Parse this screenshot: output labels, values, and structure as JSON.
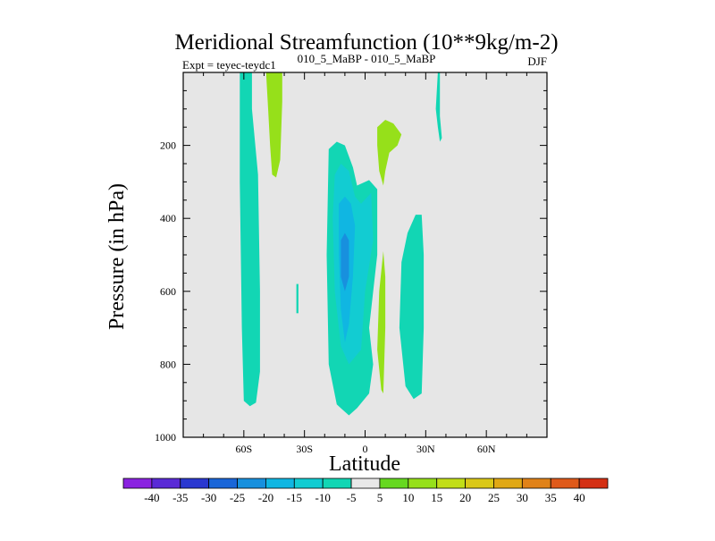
{
  "chart_data": {
    "type": "contour",
    "title": "Meridional Streamfunction (10**9kg/m-2)",
    "subtitle_left": "Expt = teyec-teydc1",
    "subtitle_center": "010_5_MaBP - 010_5_MaBP",
    "subtitle_right": "DJF",
    "xlabel": "Latitude",
    "ylabel": "Pressure (in hPa)",
    "xlim": [
      -90,
      90
    ],
    "ylim": [
      1000,
      0
    ],
    "x_ticks": [
      {
        "value": -60,
        "label": "60S"
      },
      {
        "value": -30,
        "label": "30S"
      },
      {
        "value": 0,
        "label": "0"
      },
      {
        "value": 30,
        "label": "30N"
      },
      {
        "value": 60,
        "label": "60N"
      }
    ],
    "y_ticks": [
      {
        "value": 200,
        "label": "200"
      },
      {
        "value": 400,
        "label": "400"
      },
      {
        "value": 600,
        "label": "600"
      },
      {
        "value": 800,
        "label": "800"
      },
      {
        "value": 1000,
        "label": "1000"
      }
    ],
    "x_minor_step": 10,
    "y_minor_step": 50,
    "background_color": "#e6e6e6",
    "colorbar": {
      "labels": [
        "-40",
        "-35",
        "-30",
        "-25",
        "-20",
        "-15",
        "-10",
        "-5",
        "5",
        "10",
        "15",
        "20",
        "25",
        "30",
        "35",
        "40"
      ],
      "colors": [
        "#8a22e0",
        "#5a2ad6",
        "#2a38d0",
        "#1a66d8",
        "#1890de",
        "#10b6e2",
        "#12ccd2",
        "#12d6b4",
        "#e8e8e8",
        "#66d820",
        "#96e01a",
        "#c2de18",
        "#dac818",
        "#e0a815",
        "#e08218",
        "#df5a1a",
        "#d43014"
      ]
    },
    "regions": [
      {
        "name": "sh-high-lat-neg-cell",
        "level": "-5",
        "points": [
          [
            -62,
            0
          ],
          [
            -56,
            0
          ],
          [
            -56,
            100
          ],
          [
            -53,
            280
          ],
          [
            -52,
            600
          ],
          [
            -52,
            820
          ],
          [
            -54,
            905
          ],
          [
            -57,
            915
          ],
          [
            -60,
            900
          ],
          [
            -61,
            700
          ],
          [
            -62,
            300
          ]
        ]
      },
      {
        "name": "sh-mid-lat-pos-cell",
        "level": "10",
        "points": [
          [
            -49,
            0
          ],
          [
            -41,
            0
          ],
          [
            -41,
            80
          ],
          [
            -42,
            240
          ],
          [
            -44,
            288
          ],
          [
            -46,
            280
          ],
          [
            -47,
            200
          ],
          [
            -48,
            100
          ]
        ]
      },
      {
        "name": "tropical-neg-cell-outer",
        "level": "-5",
        "points": [
          [
            -18,
            210
          ],
          [
            -14,
            190
          ],
          [
            -10,
            200
          ],
          [
            -6,
            260
          ],
          [
            -4,
            310
          ],
          [
            2,
            295
          ],
          [
            6,
            320
          ],
          [
            6,
            500
          ],
          [
            2,
            700
          ],
          [
            4,
            800
          ],
          [
            2,
            880
          ],
          [
            -4,
            920
          ],
          [
            -8,
            940
          ],
          [
            -14,
            910
          ],
          [
            -18,
            800
          ],
          [
            -19,
            500
          ]
        ]
      },
      {
        "name": "tropical-neg-cell-mid",
        "level": "-10",
        "points": [
          [
            -15,
            280
          ],
          [
            -12,
            250
          ],
          [
            -8,
            270
          ],
          [
            -5,
            340
          ],
          [
            -2,
            360
          ],
          [
            3,
            330
          ],
          [
            4,
            460
          ],
          [
            0,
            600
          ],
          [
            -2,
            760
          ],
          [
            -8,
            800
          ],
          [
            -12,
            750
          ],
          [
            -15,
            600
          ],
          [
            -16,
            400
          ]
        ]
      },
      {
        "name": "tropical-neg-cell-core",
        "level": "-15",
        "points": [
          [
            -13,
            360
          ],
          [
            -10,
            340
          ],
          [
            -7,
            360
          ],
          [
            -5,
            420
          ],
          [
            -6,
            560
          ],
          [
            -8,
            690
          ],
          [
            -10,
            740
          ],
          [
            -12,
            650
          ],
          [
            -13,
            500
          ]
        ]
      },
      {
        "name": "tropical-neg-cell-peak",
        "level": "-20",
        "points": [
          [
            -12,
            460
          ],
          [
            -10,
            440
          ],
          [
            -8,
            460
          ],
          [
            -8,
            560
          ],
          [
            -10,
            600
          ],
          [
            -12,
            560
          ]
        ]
      },
      {
        "name": "nh-subtropical-pos-upper",
        "level": "10",
        "points": [
          [
            6,
            150
          ],
          [
            10,
            130
          ],
          [
            14,
            140
          ],
          [
            18,
            170
          ],
          [
            16,
            200
          ],
          [
            12,
            220
          ],
          [
            10,
            270
          ],
          [
            9,
            310
          ],
          [
            7,
            270
          ],
          [
            6,
            200
          ]
        ]
      },
      {
        "name": "nh-subtropical-pos-lower",
        "level": "10",
        "points": [
          [
            9,
            490
          ],
          [
            10,
            560
          ],
          [
            10,
            700
          ],
          [
            9,
            880
          ],
          [
            8,
            870
          ],
          [
            6,
            760
          ],
          [
            7,
            600
          ]
        ]
      },
      {
        "name": "nh-mid-lat-neg-cell",
        "level": "-5",
        "points": [
          [
            25,
            390
          ],
          [
            28,
            390
          ],
          [
            29,
            500
          ],
          [
            29,
            700
          ],
          [
            28,
            880
          ],
          [
            24,
            895
          ],
          [
            20,
            860
          ],
          [
            17,
            700
          ],
          [
            18,
            520
          ],
          [
            21,
            440
          ]
        ]
      },
      {
        "name": "sh-small-neg-patch",
        "level": "-5",
        "points": [
          [
            -34,
            580
          ],
          [
            -33,
            580
          ],
          [
            -33,
            660
          ],
          [
            -34,
            660
          ]
        ]
      },
      {
        "name": "nh-thin-neg-strip",
        "level": "-5",
        "points": [
          [
            36,
            0
          ],
          [
            37,
            0
          ],
          [
            37,
            120
          ],
          [
            38,
            180
          ],
          [
            37,
            190
          ],
          [
            36,
            150
          ],
          [
            35,
            100
          ]
        ]
      }
    ]
  }
}
